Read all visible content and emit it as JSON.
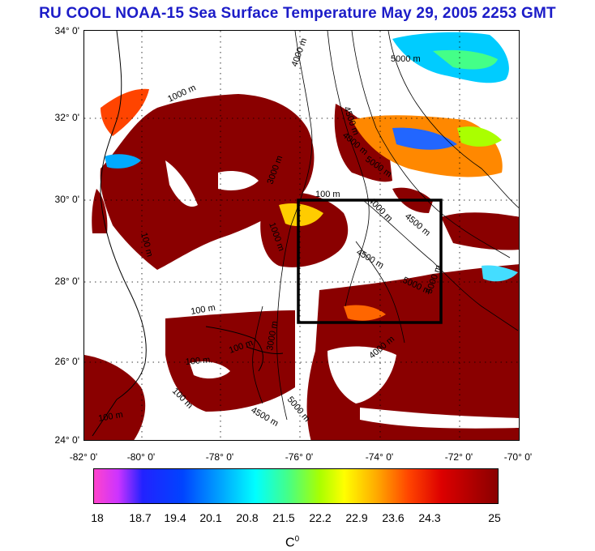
{
  "title": "RU COOL  NOAA-15 Sea Surface Temperature May 29, 2005 2253 GMT",
  "map": {
    "lat_labels": [
      "34° 0'",
      "32° 0'",
      "30° 0'",
      "28° 0'",
      "26° 0'",
      "24° 0'"
    ],
    "lon_labels": [
      "-82° 0'",
      "-80° 0'",
      "-78° 0'",
      "-76° 0'",
      "-74° 0'",
      "-72° 0'",
      "-70° 0'"
    ],
    "contour_labels": [
      "5000 m",
      "4000 m",
      "4500 m",
      "1000 m",
      "4000 m",
      "5000 m",
      "3000 m",
      "100 m",
      "4000 m",
      "4500 m",
      "4500 m",
      "5000 m",
      "5000 m",
      "1000 m",
      "100 m",
      "100 m",
      "100 m",
      "100 m",
      "3000 m",
      "4000 m",
      "5000 m",
      "4500 m",
      "100 m",
      "100 m"
    ],
    "colors": {
      "land": "#ffffff",
      "warm_water": "#8a0000",
      "frame": "#000000",
      "box": "#000000"
    }
  },
  "colorbar": {
    "ticks": [
      "18",
      "18.7",
      "19.4",
      "20.1",
      "20.8",
      "21.5",
      "22.2",
      "22.9",
      "23.6",
      "24.3",
      "25"
    ],
    "unit": "C",
    "unit_sup": "0"
  }
}
